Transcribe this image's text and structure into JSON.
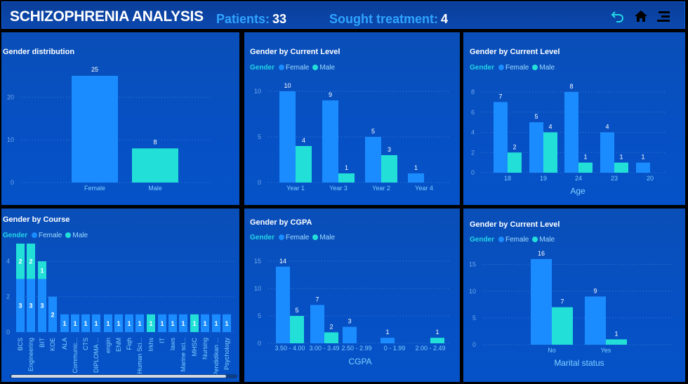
{
  "header": {
    "title": "SCHIZOPHRENIA ANALYSIS",
    "patients_label": "Patients:",
    "patients_value": "33",
    "treatment_label": "Sought treatment:",
    "treatment_value": "4",
    "icons": [
      "undo-icon",
      "home-icon",
      "menu-icon"
    ]
  },
  "colors": {
    "female": "#1b8cff",
    "male": "#22e0d8",
    "legend_title": "#22d6e6",
    "label": "#7fd0ff"
  },
  "legend": {
    "title": "Gender",
    "female": "Female",
    "male": "Male"
  },
  "chart_data": [
    {
      "id": "c1",
      "type": "bar",
      "title": "Gender distribution",
      "categories": [
        "Female",
        "Male"
      ],
      "values": [
        25,
        8
      ],
      "colors": [
        "#1b8cff",
        "#22e0d8"
      ],
      "ylim": [
        0,
        25
      ],
      "yticks": [
        0,
        10,
        20
      ],
      "xlabel": "",
      "legend": false
    },
    {
      "id": "c2",
      "type": "bar",
      "title": "Gender by Current Level",
      "categories": [
        "Year 1",
        "Year 3",
        "Year 2",
        "Year 4"
      ],
      "series": [
        {
          "name": "Female",
          "values": [
            10,
            9,
            5,
            1
          ]
        },
        {
          "name": "Male",
          "values": [
            4,
            1,
            3,
            null
          ]
        }
      ],
      "ylim": [
        0,
        10
      ],
      "yticks": [
        0,
        5,
        10
      ],
      "xlabel": "",
      "legend": true
    },
    {
      "id": "c3",
      "type": "bar",
      "title": "Gender by Current Level",
      "categories": [
        "18",
        "19",
        "24",
        "23",
        "20"
      ],
      "series": [
        {
          "name": "Female",
          "values": [
            7,
            5,
            8,
            4,
            1
          ]
        },
        {
          "name": "Male",
          "values": [
            2,
            4,
            1,
            1,
            null
          ]
        }
      ],
      "ylim": [
        0,
        8
      ],
      "yticks": [
        0,
        2,
        4,
        6,
        8
      ],
      "xlabel": "Age",
      "legend": true
    },
    {
      "id": "c4",
      "type": "bar",
      "stacked": true,
      "title": "Gender by Course",
      "categories": [
        "BCS",
        "Engineering",
        "BIT",
        "KOE",
        "ALA",
        "Communic...",
        "CTS",
        "DIPLOMA ...",
        "engin",
        "ENM",
        "Fiqh",
        "Human Sci...",
        "Irkhs",
        "IT",
        "laws",
        "Marine sci...",
        "MHSC",
        "Nursing",
        "Pendidikan ...",
        "Psychology"
      ],
      "series": [
        {
          "name": "Female",
          "values": [
            3,
            3,
            3,
            2,
            1,
            1,
            1,
            1,
            1,
            1,
            1,
            1,
            null,
            1,
            1,
            1,
            null,
            1,
            1,
            1
          ]
        },
        {
          "name": "Male",
          "values": [
            2,
            2,
            1,
            null,
            null,
            null,
            null,
            null,
            null,
            null,
            null,
            null,
            1,
            null,
            null,
            null,
            1,
            null,
            null,
            null
          ]
        }
      ],
      "ylim": [
        0,
        5
      ],
      "yticks": [
        0,
        2,
        4
      ],
      "xlabel": "",
      "legend": true
    },
    {
      "id": "c5",
      "type": "bar",
      "title": "Gender by CGPA",
      "categories": [
        "3.50 - 4.00",
        "3.00 - 3.49",
        "2.50 - 2.99",
        "0 - 1.99",
        "2.00 - 2.49"
      ],
      "series": [
        {
          "name": "Female",
          "values": [
            14,
            7,
            3,
            1,
            null
          ]
        },
        {
          "name": "Male",
          "values": [
            5,
            2,
            null,
            null,
            1
          ]
        }
      ],
      "ylim": [
        0,
        15
      ],
      "yticks": [
        0,
        5,
        10,
        15
      ],
      "xlabel": "CGPA",
      "legend": true
    },
    {
      "id": "c6",
      "type": "bar",
      "title": "Gender by Current Level",
      "categories": [
        "No",
        "Yes"
      ],
      "series": [
        {
          "name": "Female",
          "values": [
            16,
            9
          ]
        },
        {
          "name": "Male",
          "values": [
            7,
            1
          ]
        }
      ],
      "ylim": [
        0,
        16
      ],
      "yticks": [
        0,
        5,
        10,
        15
      ],
      "xlabel": "Marital status",
      "legend": true
    }
  ]
}
